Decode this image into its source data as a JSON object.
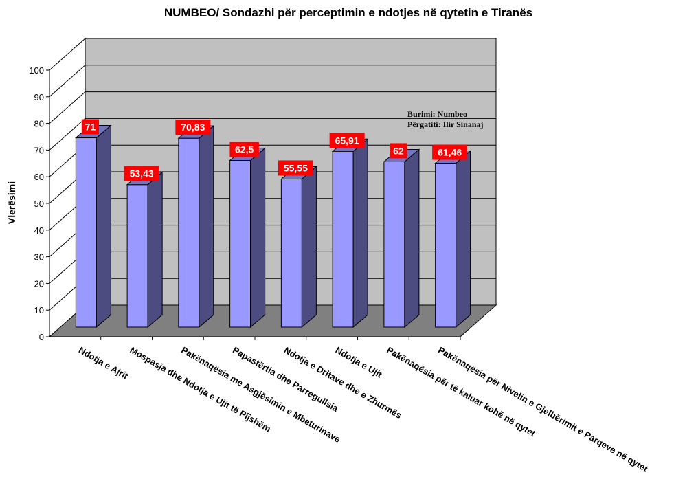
{
  "chart_data": {
    "type": "bar",
    "title": "NUMBEO/ Sondazhi për perceptimin e ndotjes në qytetin e Tiranës",
    "xlabel": "",
    "ylabel": "Vlerësimi",
    "ylim": [
      0,
      100
    ],
    "yticks": [
      "0",
      "10",
      "20",
      "30",
      "40",
      "50",
      "60",
      "70",
      "80",
      "90",
      "100"
    ],
    "grid": true,
    "style": "3d",
    "categories": [
      "Ndotja e Ajrit",
      "Mospasja dhe Ndotja e Ujit të Pijshëm",
      "Pakënaqësia me Asgjësimin e Mbeturinave",
      "Papastërtia dhe Parregullsia",
      "Ndotja e Dritave dhe e Zhurmës",
      "Ndotja e Ujit",
      "Pakënaqësia për të kaluar kohë në qytet",
      "Pakënaqësia për Nivelin e Gjelbërimit e Parqeve në qytet"
    ],
    "values": [
      71,
      53.43,
      70.83,
      62.5,
      55.55,
      65.91,
      62,
      61.46
    ],
    "data_labels": [
      "71",
      "53,43",
      "70,83",
      "62,5",
      "55,55",
      "65,91",
      "62",
      "61,46"
    ],
    "annotations": [
      "Burimi: Numbeo",
      "Përgatiti: Ilir Sinanaj"
    ],
    "colors": {
      "bar_front": "#9999ff",
      "bar_side": "#4c4c80",
      "bar_top": "#7373bf",
      "back_wall": "#c0c0c0",
      "side_wall": "#ffffff",
      "floor": "#808080",
      "label_bg": "#ff0000",
      "label_text": "#ffffff"
    }
  }
}
